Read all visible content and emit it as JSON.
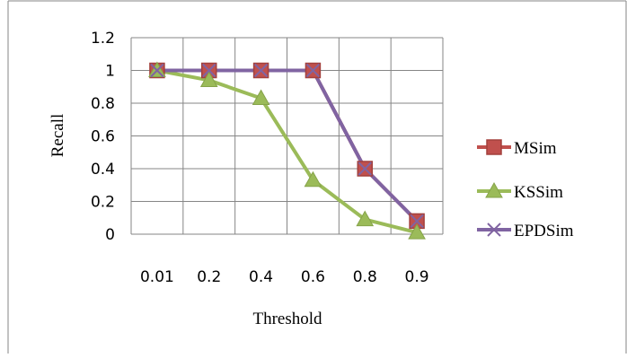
{
  "chart_data": {
    "type": "line",
    "title": "",
    "xlabel": "Threshold",
    "ylabel": "Recall",
    "categories": [
      "0.01",
      "0.2",
      "0.4",
      "0.6",
      "0.8",
      "0.9"
    ],
    "ylim": [
      0,
      1.2
    ],
    "yticks": [
      "0",
      "0.2",
      "0.4",
      "0.6",
      "0.8",
      "1",
      "1.2"
    ],
    "grid": true,
    "legend_position": "right",
    "series": [
      {
        "name": "MSim",
        "values": [
          1,
          1,
          1,
          1,
          0.4,
          0.08
        ],
        "color": "#C0504D",
        "marker": "square"
      },
      {
        "name": "KSSim",
        "values": [
          1,
          0.94,
          0.83,
          0.33,
          0.09,
          0.01
        ],
        "color": "#9BBB59",
        "marker": "triangle"
      },
      {
        "name": "EPDSim",
        "values": [
          1,
          1,
          1,
          1,
          0.4,
          0.08
        ],
        "color": "#8064A2",
        "marker": "x"
      }
    ]
  }
}
